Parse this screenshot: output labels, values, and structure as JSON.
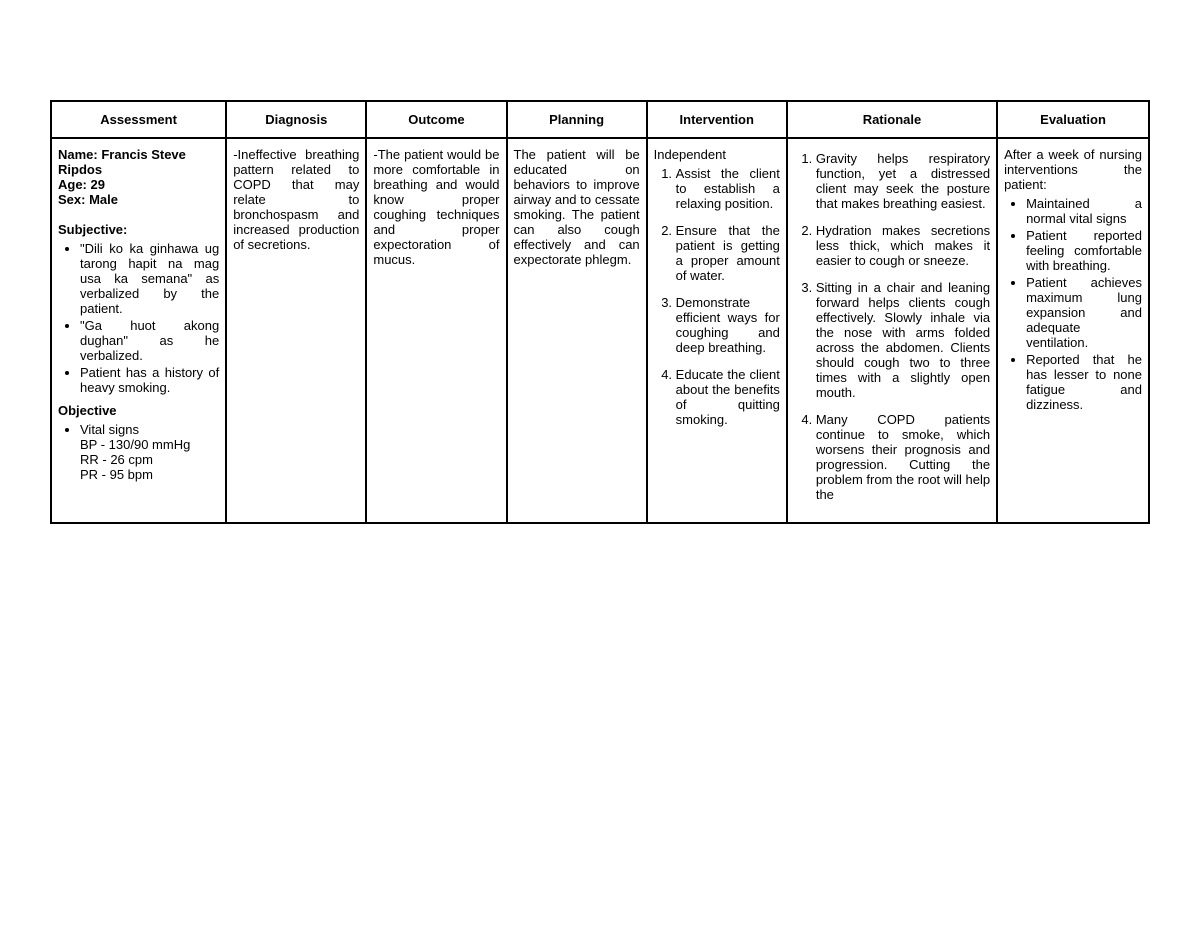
{
  "headers": {
    "assessment": "Assessment",
    "diagnosis": "Diagnosis",
    "outcome": "Outcome",
    "planning": "Planning",
    "intervention": "Intervention",
    "rationale": "Rationale",
    "evaluation": "Evaluation"
  },
  "assessment": {
    "name_label": "Name: Francis Steve Ripdos",
    "age_label": "Age: 29",
    "sex_label": "Sex: Male",
    "subjective_label": "Subjective:",
    "subjective_items": [
      "\"Dili ko ka ginhawa ug tarong hapit na mag usa ka semana\" as verbalized by the patient.",
      "\"Ga huot akong dughan\" as he verbalized.",
      "Patient has a history of heavy smoking."
    ],
    "objective_label": "Objective",
    "vital_label": "Vital signs",
    "bp": "BP - 130/90 mmHg",
    "rr": "RR - 26 cpm",
    "pr": "PR - 95 bpm"
  },
  "diagnosis": "-Ineffective breathing pattern related to COPD that may relate to bronchospasm and increased production of secretions.",
  "outcome": "-The patient would be more comfortable in breathing and would know proper coughing techniques and proper expectoration of mucus.",
  "planning": "The patient will be educated on behaviors to improve airway and to cessate smoking. The patient can also cough effectively and can expectorate phlegm.",
  "intervention": {
    "independent_label": "Independent",
    "items": [
      "Assist the client to establish a relaxing position.",
      "Ensure that the patient is getting a proper amount of water.",
      "Demonstrate efficient ways for coughing and deep breathing.",
      "Educate the client about the benefits of quitting smoking."
    ]
  },
  "rationale": {
    "items": [
      "Gravity helps respiratory function, yet a distressed client may seek the posture that makes breathing easiest.",
      "Hydration makes secretions less thick, which makes it easier to cough or sneeze.",
      "Sitting in a chair and leaning forward helps clients cough effectively. Slowly inhale via the nose with arms folded across the abdomen. Clients should cough two to three times with a slightly open mouth.",
      "Many COPD patients continue to smoke, which worsens their prognosis and progression. Cutting the problem from the root will help the"
    ]
  },
  "evaluation": {
    "intro": "After a week of nursing interventions the patient:",
    "items": [
      "Maintained a normal vital signs",
      "Patient reported feeling comfortable with breathing.",
      "Patient achieves maximum lung expansion and adequate ventilation.",
      "Reported that he has lesser to none fatigue and dizziness."
    ]
  }
}
